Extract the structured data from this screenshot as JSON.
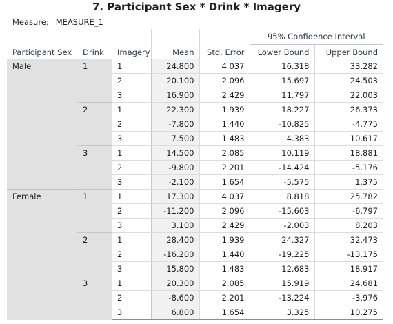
{
  "title": "7. Participant Sex * Drink * Imagery",
  "measure": {
    "label": "Measure:",
    "value": "MEASURE_1"
  },
  "headers": {
    "sex": "Participant Sex",
    "drink": "Drink",
    "imagery": "Imagery",
    "mean": "Mean",
    "std_error": "Std. Error",
    "ci": "95% Confidence Interval",
    "lower": "Lower Bound",
    "upper": "Upper Bound"
  },
  "groups": [
    {
      "sex": "Male",
      "drinks": [
        {
          "drink": "1",
          "rows": [
            {
              "imagery": "1",
              "mean": "24.800",
              "se": "4.037",
              "lower": "16.318",
              "upper": "33.282"
            },
            {
              "imagery": "2",
              "mean": "20.100",
              "se": "2.096",
              "lower": "15.697",
              "upper": "24.503"
            },
            {
              "imagery": "3",
              "mean": "16.900",
              "se": "2.429",
              "lower": "11.797",
              "upper": "22.003"
            }
          ]
        },
        {
          "drink": "2",
          "rows": [
            {
              "imagery": "1",
              "mean": "22.300",
              "se": "1.939",
              "lower": "18.227",
              "upper": "26.373"
            },
            {
              "imagery": "2",
              "mean": "-7.800",
              "se": "1.440",
              "lower": "-10.825",
              "upper": "-4.775"
            },
            {
              "imagery": "3",
              "mean": "7.500",
              "se": "1.483",
              "lower": "4.383",
              "upper": "10.617"
            }
          ]
        },
        {
          "drink": "3",
          "rows": [
            {
              "imagery": "1",
              "mean": "14.500",
              "se": "2.085",
              "lower": "10.119",
              "upper": "18.881"
            },
            {
              "imagery": "2",
              "mean": "-9.800",
              "se": "2.201",
              "lower": "-14.424",
              "upper": "-5.176"
            },
            {
              "imagery": "3",
              "mean": "-2.100",
              "se": "1.654",
              "lower": "-5.575",
              "upper": "1.375"
            }
          ]
        }
      ]
    },
    {
      "sex": "Female",
      "drinks": [
        {
          "drink": "1",
          "rows": [
            {
              "imagery": "1",
              "mean": "17.300",
              "se": "4.037",
              "lower": "8.818",
              "upper": "25.782"
            },
            {
              "imagery": "2",
              "mean": "-11.200",
              "se": "2.096",
              "lower": "-15.603",
              "upper": "-6.797"
            },
            {
              "imagery": "3",
              "mean": "3.100",
              "se": "2.429",
              "lower": "-2.003",
              "upper": "8.203"
            }
          ]
        },
        {
          "drink": "2",
          "rows": [
            {
              "imagery": "1",
              "mean": "28.400",
              "se": "1.939",
              "lower": "24.327",
              "upper": "32.473"
            },
            {
              "imagery": "2",
              "mean": "-16.200",
              "se": "1.440",
              "lower": "-19.225",
              "upper": "-13.175"
            },
            {
              "imagery": "3",
              "mean": "15.800",
              "se": "1.483",
              "lower": "12.683",
              "upper": "18.917"
            }
          ]
        },
        {
          "drink": "3",
          "rows": [
            {
              "imagery": "1",
              "mean": "20.300",
              "se": "2.085",
              "lower": "15.919",
              "upper": "24.681"
            },
            {
              "imagery": "2",
              "mean": "-8.600",
              "se": "2.201",
              "lower": "-13.224",
              "upper": "-3.976"
            },
            {
              "imagery": "3",
              "mean": "6.800",
              "se": "1.654",
              "lower": "3.325",
              "upper": "10.275"
            }
          ]
        }
      ]
    }
  ]
}
